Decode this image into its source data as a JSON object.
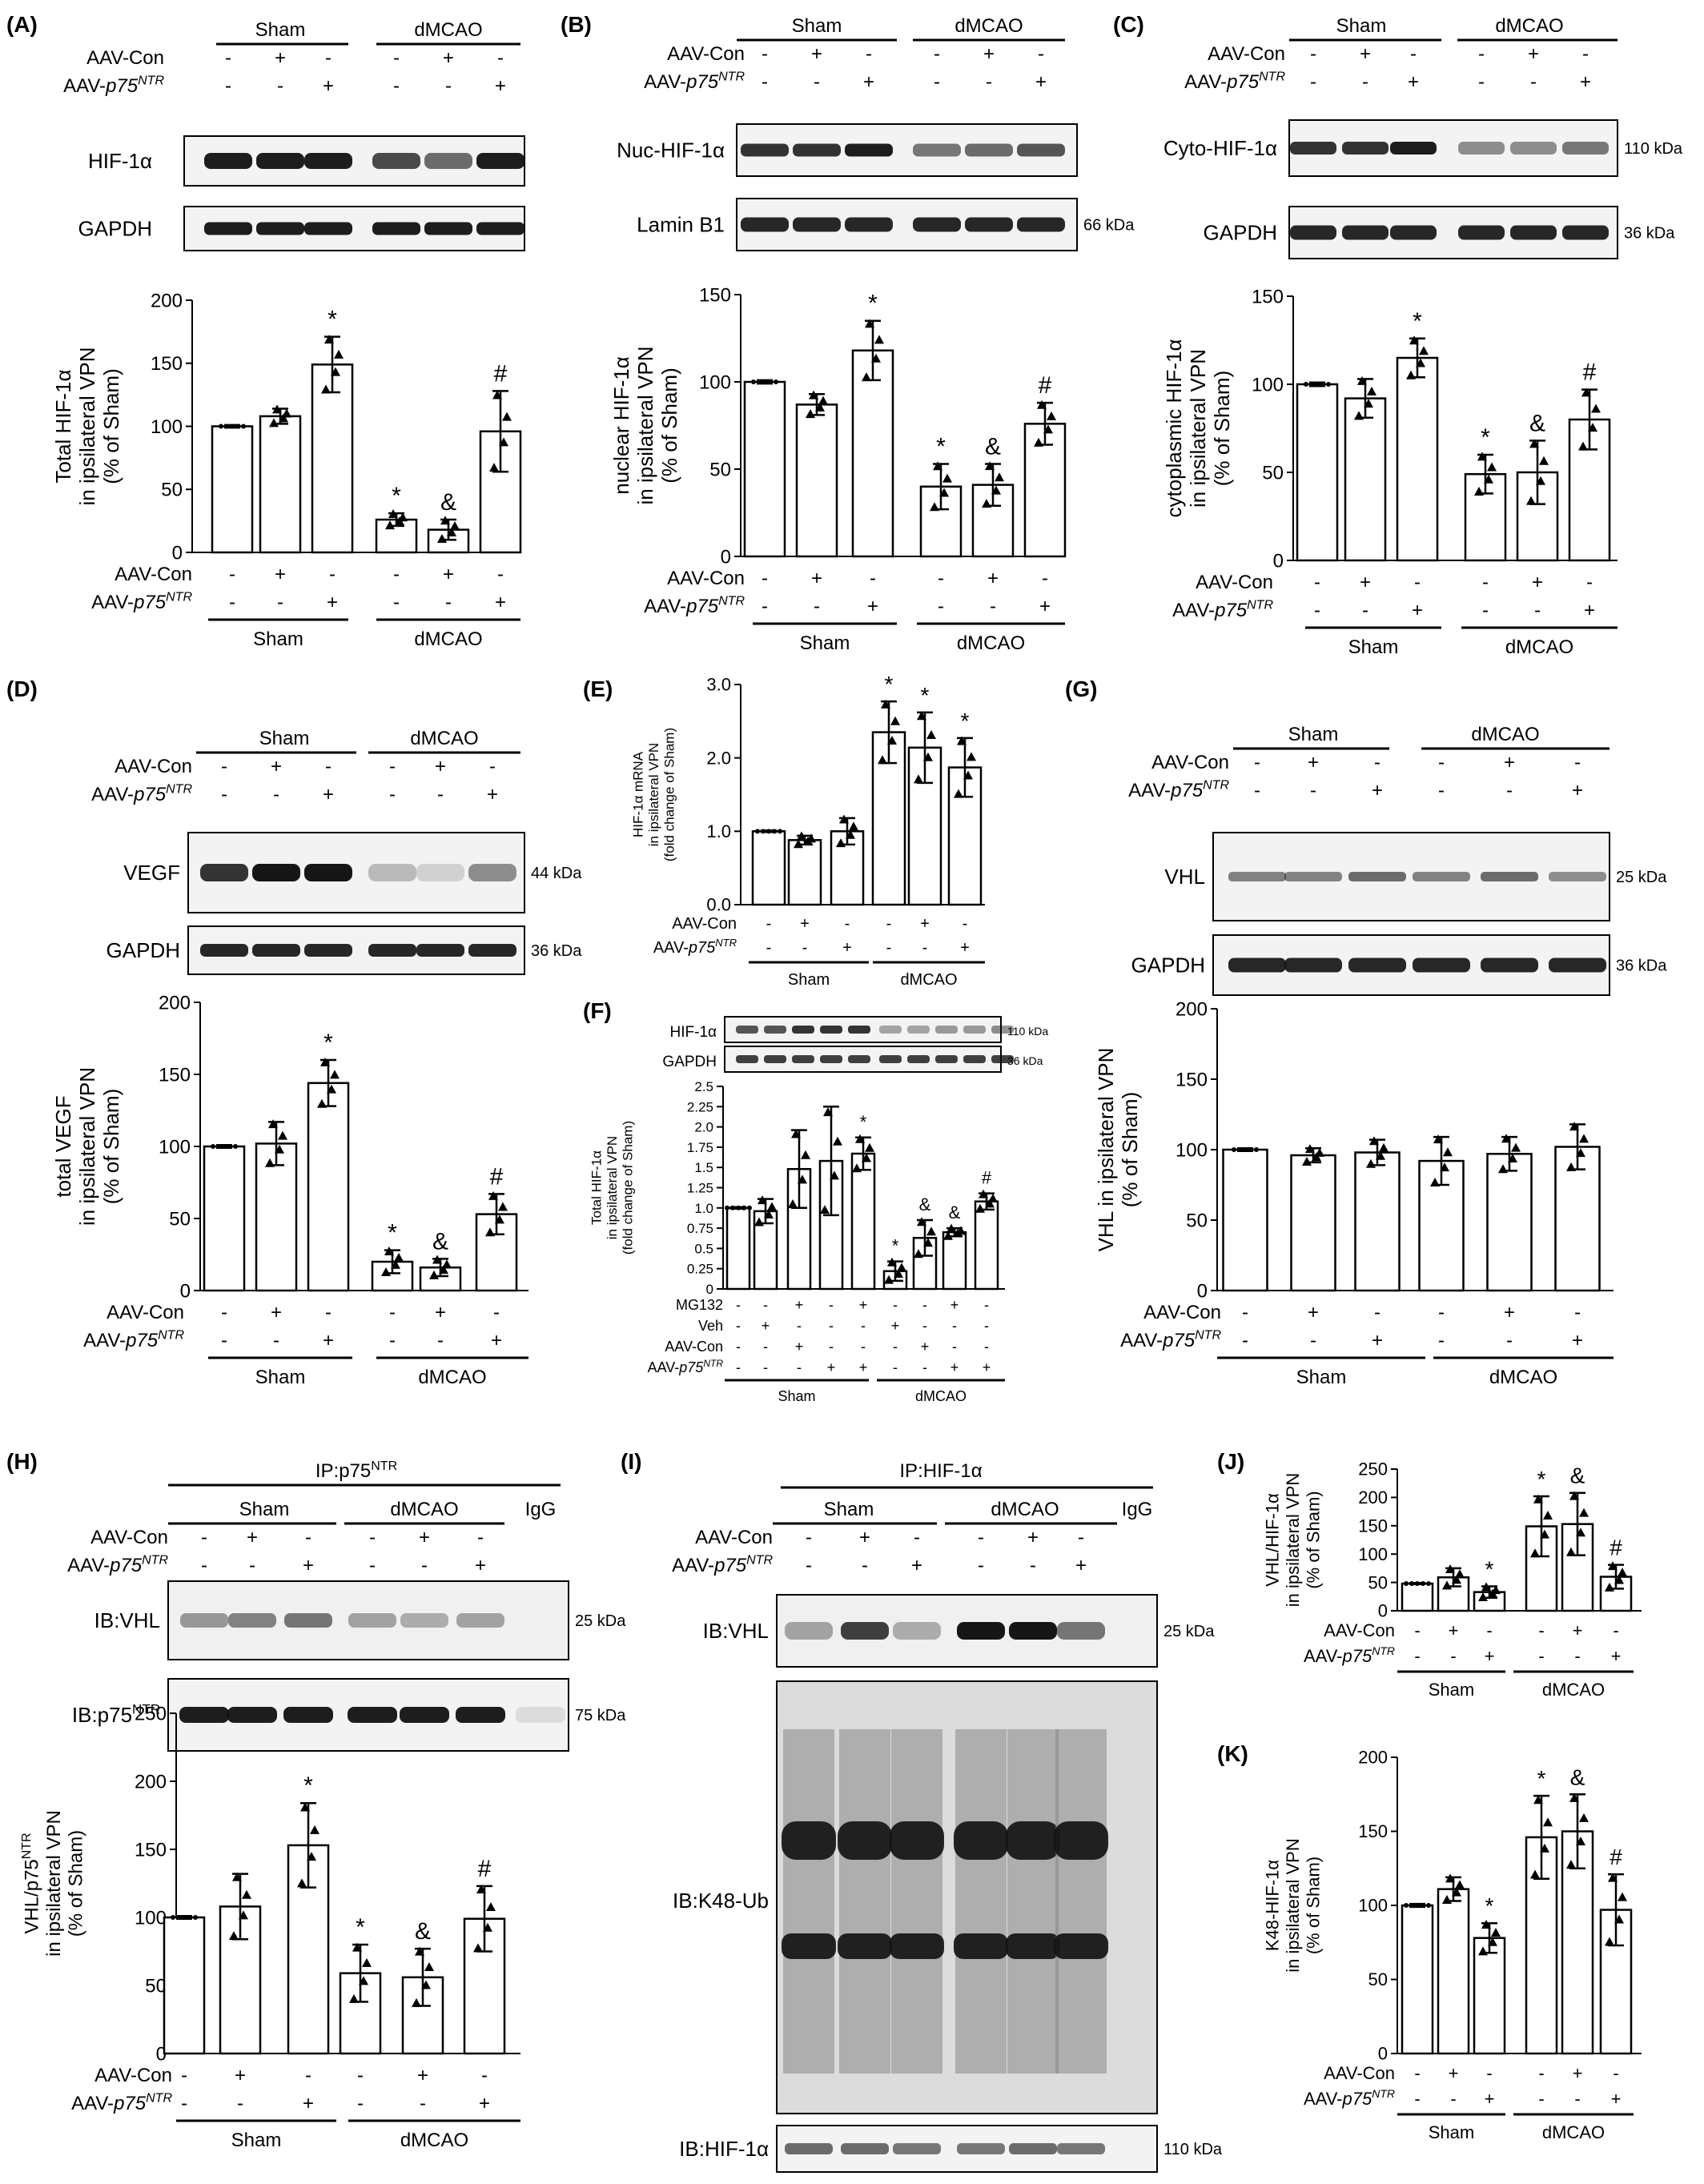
{
  "figure": {
    "panels": [
      {
        "letter": "(A)",
        "conditions": {
          "groups": [
            "Sham",
            "dMCAO"
          ],
          "rows": [
            [
              "AAV-Con",
              "",
              "-",
              "+",
              "-",
              "-",
              "+",
              "-"
            ],
            [
              "AAV-",
              "p75",
              "-",
              "-",
              "+",
              "-",
              "-",
              "+"
            ]
          ]
        },
        "blots": [
          {
            "label": "HIF-1α",
            "kda": ""
          },
          {
            "label": "GAPDH",
            "kda": ""
          }
        ]
      },
      {
        "letter": "(B)",
        "conditions": {
          "groups": [
            "Sham",
            "dMCAO"
          ],
          "rows": [
            [
              "AAV-Con",
              "",
              "-",
              "+",
              "-",
              "-",
              "+",
              "-"
            ],
            [
              "AAV-",
              "p75",
              "-",
              "-",
              "+",
              "-",
              "-",
              "+"
            ]
          ]
        },
        "blots": [
          {
            "label": "Nuc-HIF-1α",
            "kda": ""
          },
          {
            "label": "Lamin B1",
            "kda": "66 kDa"
          }
        ]
      },
      {
        "letter": "(C)",
        "conditions": {
          "groups": [
            "Sham",
            "dMCAO"
          ],
          "rows": [
            [
              "AAV-Con",
              "",
              "-",
              "+",
              "-",
              "-",
              "+",
              "-"
            ],
            [
              "AAV-",
              "p75",
              "-",
              "-",
              "+",
              "-",
              "-",
              "+"
            ]
          ]
        },
        "blots": [
          {
            "label": "Cyto-HIF-1α",
            "kda": "110 kDa"
          },
          {
            "label": "GAPDH",
            "kda": "36 kDa"
          }
        ]
      },
      {
        "letter": "(D)",
        "conditions": {
          "groups": [
            "Sham",
            "dMCAO"
          ],
          "rows": [
            [
              "AAV-Con",
              "",
              "-",
              "+",
              "-",
              "-",
              "+",
              "-"
            ],
            [
              "AAV-",
              "p75",
              "-",
              "-",
              "+",
              "-",
              "-",
              "+"
            ]
          ]
        },
        "blots": [
          {
            "label": "VEGF",
            "kda": "44 kDa"
          },
          {
            "label": "GAPDH",
            "kda": "36 kDa"
          }
        ]
      },
      {
        "letter": "(E)"
      },
      {
        "letter": "(F)",
        "blots": [
          {
            "label": "HIF-1α",
            "kda": "110 kDa"
          },
          {
            "label": "GAPDH",
            "kda": "36 kDa"
          }
        ]
      },
      {
        "letter": "(G)",
        "conditions": {
          "groups": [
            "Sham",
            "dMCAO"
          ],
          "rows": [
            [
              "AAV-Con",
              "",
              "-",
              "+",
              "-",
              "-",
              "+",
              "-"
            ],
            [
              "AAV-",
              "p75",
              "-",
              "-",
              "+",
              "-",
              "-",
              "+"
            ]
          ]
        },
        "blots": [
          {
            "label": "VHL",
            "kda": "25 kDa"
          },
          {
            "label": "GAPDH",
            "kda": "36 kDa"
          }
        ]
      },
      {
        "letter": "(H)",
        "ip": "IP:p75",
        "ip_sup": "NTR",
        "igg": "IgG",
        "conditions": {
          "groups": [
            "Sham",
            "dMCAO"
          ],
          "rows": [
            [
              "AAV-Con",
              "",
              "-",
              "+",
              "-",
              "-",
              "+",
              "-"
            ],
            [
              "AAV-",
              "p75",
              "-",
              "-",
              "+",
              "-",
              "-",
              "+"
            ]
          ]
        },
        "blots": [
          {
            "label": "IB:VHL",
            "kda": "25 kDa"
          },
          {
            "label": "IB:p75",
            "label_sup": "NTR",
            "kda": "75 kDa"
          }
        ]
      },
      {
        "letter": "(I)",
        "ip": "IP:HIF-1α",
        "ip_sup": "",
        "igg": "IgG",
        "conditions": {
          "groups": [
            "Sham",
            "dMCAO"
          ],
          "rows": [
            [
              "AAV-Con",
              "",
              "-",
              "+",
              "-",
              "-",
              "+",
              "-"
            ],
            [
              "AAV-",
              "p75",
              "-",
              "-",
              "+",
              "-",
              "-",
              "+"
            ]
          ]
        },
        "blots": [
          {
            "label": "IB:VHL",
            "kda": "25 kDa"
          },
          {
            "label": "IB:K48-Ub",
            "kda": ""
          },
          {
            "label": "IB:HIF-1α",
            "kda": "110 kDa"
          }
        ]
      },
      {
        "letter": "(J)"
      },
      {
        "letter": "(K)"
      }
    ],
    "symbols": {
      "star": "*",
      "amp": "&",
      "hash": "#"
    },
    "superscript": "NTR"
  },
  "chart_data": [
    {
      "id": "A",
      "type": "bar",
      "ylabel_lines": [
        "Total HIF-1α",
        "in ipsilateral VPN",
        "(% of Sham)"
      ],
      "ylim": [
        0,
        200
      ],
      "yticks": [
        "0",
        "50",
        "100",
        "150",
        "200"
      ],
      "categories": [
        "Sham",
        "Sham",
        "Sham",
        "dMCAO",
        "dMCAO",
        "dMCAO"
      ],
      "values": [
        100,
        108,
        149,
        26,
        18,
        96
      ],
      "errors": [
        1,
        6,
        22,
        5,
        8,
        32
      ],
      "annotations": [
        "",
        "",
        "*",
        "*",
        "&",
        "#"
      ],
      "rows": [
        [
          "AAV-Con",
          "",
          "-",
          "+",
          "-",
          "-",
          "+",
          "-"
        ],
        [
          "AAV-",
          "p75",
          "-",
          "-",
          "+",
          "-",
          "-",
          "+"
        ]
      ],
      "groups": [
        "Sham",
        "dMCAO"
      ]
    },
    {
      "id": "B",
      "type": "bar",
      "ylabel_lines": [
        "nuclear HIF-1α",
        "in ipsilateral VPN",
        "(% of Sham)"
      ],
      "ylim": [
        0,
        150
      ],
      "yticks": [
        "0",
        "50",
        "100",
        "150"
      ],
      "categories": [
        "Sham",
        "Sham",
        "Sham",
        "dMCAO",
        "dMCAO",
        "dMCAO"
      ],
      "values": [
        100,
        87,
        118,
        40,
        41,
        76
      ],
      "errors": [
        1,
        6,
        17,
        13,
        12,
        12
      ],
      "annotations": [
        "",
        "",
        "*",
        "*",
        "&",
        "#"
      ],
      "rows": [
        [
          "AAV-Con",
          "",
          "-",
          "+",
          "-",
          "-",
          "+",
          "-"
        ],
        [
          "AAV-",
          "p75",
          "-",
          "-",
          "+",
          "-",
          "-",
          "+"
        ]
      ],
      "groups": [
        "Sham",
        "dMCAO"
      ]
    },
    {
      "id": "C",
      "type": "bar",
      "ylabel_lines": [
        "cytoplasmic HIF-1α",
        "in ipsilateral VPN",
        "(% of Sham)"
      ],
      "ylim": [
        0,
        150
      ],
      "yticks": [
        "0",
        "50",
        "100",
        "150"
      ],
      "categories": [
        "Sham",
        "Sham",
        "Sham",
        "dMCAO",
        "dMCAO",
        "dMCAO"
      ],
      "values": [
        100,
        92,
        115,
        49,
        50,
        80
      ],
      "errors": [
        1,
        11,
        11,
        11,
        18,
        17
      ],
      "annotations": [
        "",
        "",
        "*",
        "*",
        "&",
        "#"
      ],
      "rows": [
        [
          "AAV-Con",
          "",
          "-",
          "+",
          "-",
          "-",
          "+",
          "-"
        ],
        [
          "AAV-",
          "p75",
          "-",
          "-",
          "+",
          "-",
          "-",
          "+"
        ]
      ],
      "groups": [
        "Sham",
        "dMCAO"
      ]
    },
    {
      "id": "D",
      "type": "bar",
      "ylabel_lines": [
        "total VEGF",
        "in ipsilateral VPN",
        "(% of Sham)"
      ],
      "ylim": [
        0,
        200
      ],
      "yticks": [
        "0",
        "50",
        "100",
        "150",
        "200"
      ],
      "categories": [
        "Sham",
        "Sham",
        "Sham",
        "dMCAO",
        "dMCAO",
        "dMCAO"
      ],
      "values": [
        100,
        102,
        144,
        20,
        16,
        53
      ],
      "errors": [
        1,
        15,
        16,
        8,
        6,
        14
      ],
      "annotations": [
        "",
        "",
        "*",
        "*",
        "&",
        "#"
      ],
      "rows": [
        [
          "AAV-Con",
          "",
          "-",
          "+",
          "-",
          "-",
          "+",
          "-"
        ],
        [
          "AAV-",
          "p75",
          "-",
          "-",
          "+",
          "-",
          "-",
          "+"
        ]
      ],
      "groups": [
        "Sham",
        "dMCAO"
      ]
    },
    {
      "id": "E",
      "type": "bar",
      "ylabel_lines": [
        "HIF-1α mRNA",
        "in ipsilateral VPN",
        "(fold change of Sham)"
      ],
      "ylim": [
        0,
        3
      ],
      "yticks": [
        "0.0",
        "1.0",
        "2.0",
        "3.0"
      ],
      "categories": [
        "Sham",
        "Sham",
        "Sham",
        "dMCAO",
        "dMCAO",
        "dMCAO"
      ],
      "values": [
        1.0,
        0.88,
        1.0,
        2.35,
        2.14,
        1.87
      ],
      "errors": [
        0.01,
        0.06,
        0.18,
        0.42,
        0.48,
        0.4
      ],
      "annotations": [
        "",
        "",
        "",
        "*",
        "*",
        "*"
      ],
      "rows": [
        [
          "AAV-Con",
          "",
          "-",
          "+",
          "-",
          "-",
          "+",
          "-"
        ],
        [
          "AAV-",
          "p75",
          "-",
          "-",
          "+",
          "-",
          "-",
          "+"
        ]
      ],
      "groups": [
        "Sham",
        "dMCAO"
      ]
    },
    {
      "id": "F",
      "type": "bar",
      "ylabel_lines": [
        "Total HIF-1α",
        "in ipsilateral VPN",
        "(fold change of Sham)"
      ],
      "ylim": [
        0,
        2.5
      ],
      "yticks": [
        "0",
        "0.25",
        "0.5",
        "0.75",
        "1.0",
        "1.25",
        "1.5",
        "1.75",
        "2.0",
        "2.25",
        "2.5"
      ],
      "categories": [
        "Sham",
        "Sham",
        "Sham",
        "Sham",
        "Sham",
        "dMCAO",
        "dMCAO",
        "dMCAO",
        "dMCAO",
        "dMCAO"
      ],
      "values": [
        1.0,
        0.96,
        1.48,
        1.58,
        1.67,
        0.22,
        0.63,
        0.7,
        1.08,
        0
      ],
      "errors": [
        0.01,
        0.15,
        0.48,
        0.67,
        0.2,
        0.12,
        0.22,
        0.05,
        0.1,
        0
      ],
      "annotations": [
        "",
        "",
        "",
        "",
        "*",
        "*",
        "&",
        "&",
        "#",
        ""
      ],
      "rows": [
        [
          "MG132",
          "",
          "-",
          "-",
          "+",
          "-",
          "+",
          "-",
          "-",
          "+",
          "-",
          "+"
        ],
        [
          "Veh",
          "",
          "-",
          "+",
          "-",
          "-",
          "-",
          "+",
          "-",
          "-",
          "-",
          "-"
        ],
        [
          "AAV-Con",
          "",
          "-",
          "-",
          "+",
          "-",
          "-",
          "-",
          "+",
          "-",
          "-",
          "-"
        ],
        [
          "AAV-",
          "p75",
          "-",
          "-",
          "-",
          "+",
          "+",
          "-",
          "-",
          "+",
          "+",
          "-"
        ]
      ],
      "groups": [
        "Sham",
        "dMCAO"
      ]
    },
    {
      "id": "G",
      "type": "bar",
      "ylabel_lines": [
        "VHL in ipsilateral VPN",
        "(% of Sham)"
      ],
      "ylim": [
        0,
        200
      ],
      "yticks": [
        "0",
        "50",
        "100",
        "150",
        "200"
      ],
      "categories": [
        "Sham",
        "Sham",
        "Sham",
        "dMCAO",
        "dMCAO",
        "dMCAO"
      ],
      "values": [
        100,
        96,
        98,
        92,
        97,
        102
      ],
      "errors": [
        1,
        5,
        9,
        17,
        12,
        16
      ],
      "annotations": [
        "",
        "",
        "",
        "",
        "",
        ""
      ],
      "rows": [
        [
          "AAV-Con",
          "",
          "-",
          "+",
          "-",
          "-",
          "+",
          "-"
        ],
        [
          "AAV-",
          "p75",
          "-",
          "-",
          "+",
          "-",
          "-",
          "+"
        ]
      ],
      "groups": [
        "Sham",
        "dMCAO"
      ]
    },
    {
      "id": "H",
      "type": "bar",
      "ylabel_lines": [
        "VHL/p75",
        "in ipsilateral VPN",
        "(% of Sham)"
      ],
      "ylabel_sup": "NTR",
      "ylim": [
        0,
        250
      ],
      "yticks": [
        "0",
        "50",
        "100",
        "150",
        "200",
        "250"
      ],
      "categories": [
        "Sham",
        "Sham",
        "Sham",
        "dMCAO",
        "dMCAO",
        "dMCAO"
      ],
      "values": [
        100,
        108,
        153,
        59,
        56,
        99
      ],
      "errors": [
        1,
        24,
        31,
        21,
        21,
        24
      ],
      "annotations": [
        "",
        "",
        "*",
        "*",
        "&",
        "#"
      ],
      "rows": [
        [
          "AAV-Con",
          "",
          "-",
          "+",
          "-",
          "-",
          "+",
          "-"
        ],
        [
          "AAV-",
          "p75",
          "-",
          "-",
          "+",
          "-",
          "-",
          "+"
        ]
      ],
      "groups": [
        "Sham",
        "dMCAO"
      ]
    },
    {
      "id": "J",
      "type": "bar",
      "ylabel_lines": [
        "VHL/HIF-1α",
        "in ipsilateral VPN",
        "(% of Sham)"
      ],
      "ylim": [
        0,
        250
      ],
      "yticks": [
        "0",
        "50",
        "100",
        "150",
        "200",
        "250"
      ],
      "categories": [
        "Sham",
        "Sham",
        "Sham",
        "dMCAO",
        "dMCAO",
        "dMCAO"
      ],
      "values": [
        48,
        59,
        33,
        149,
        153,
        60
      ],
      "errors": [
        1,
        16,
        10,
        53,
        55,
        21
      ],
      "annotations": [
        "",
        "",
        "*",
        "*",
        "&",
        "#"
      ],
      "rows": [
        [
          "AAV-Con",
          "",
          "-",
          "+",
          "-",
          "-",
          "+",
          "-"
        ],
        [
          "AAV-",
          "p75",
          "-",
          "-",
          "+",
          "-",
          "-",
          "+"
        ]
      ],
      "groups": [
        "Sham",
        "dMCAO"
      ]
    },
    {
      "id": "K",
      "type": "bar",
      "ylabel_lines": [
        "K48-HIF-1α",
        "in ipsilateral VPN",
        "(% of Sham)"
      ],
      "ylim": [
        0,
        200
      ],
      "yticks": [
        "0",
        "50",
        "100",
        "150",
        "200"
      ],
      "categories": [
        "Sham",
        "Sham",
        "Sham",
        "dMCAO",
        "dMCAO",
        "dMCAO"
      ],
      "values": [
        100,
        111,
        78,
        146,
        150,
        97
      ],
      "errors": [
        1,
        8,
        10,
        28,
        25,
        24
      ],
      "annotations": [
        "",
        "",
        "*",
        "*",
        "&",
        "#"
      ],
      "rows": [
        [
          "AAV-Con",
          "",
          "-",
          "+",
          "-",
          "-",
          "+",
          "-"
        ],
        [
          "AAV-",
          "p75",
          "-",
          "-",
          "+",
          "-",
          "-",
          "+"
        ]
      ],
      "groups": [
        "Sham",
        "dMCAO"
      ]
    }
  ]
}
